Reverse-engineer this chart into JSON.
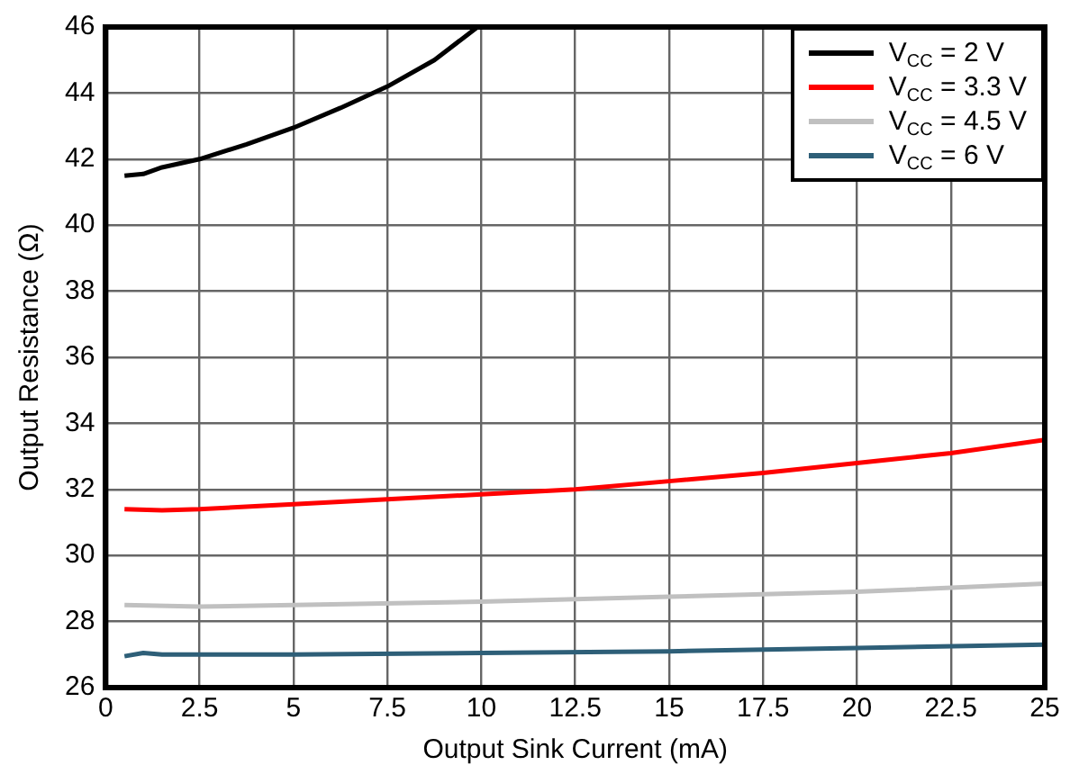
{
  "chart_data": {
    "type": "line",
    "xlabel": "Output Sink Current (mA)",
    "ylabel": "Output Resistance (Ω)",
    "xlim": [
      0,
      25
    ],
    "xticks": [
      0,
      2.5,
      5,
      7.5,
      10,
      12.5,
      15,
      17.5,
      20,
      22.5,
      25
    ],
    "ylim": [
      26,
      46
    ],
    "yticks": [
      26,
      28,
      30,
      32,
      34,
      36,
      38,
      40,
      42,
      44,
      46
    ],
    "grid": true,
    "legend": "top right",
    "marker": "none",
    "line_style": "solid",
    "series": [
      {
        "name": "V$_{CC}$ = 2 V",
        "color": "#000000",
        "x": [
          0.5,
          1,
          1.5,
          2.5,
          3.75,
          5,
          6.25,
          7.5,
          8.75,
          9.9
        ],
        "values": [
          41.5,
          41.55,
          41.75,
          42.0,
          42.45,
          42.95,
          43.55,
          44.2,
          45.0,
          46.0
        ]
      },
      {
        "name": "V$_{CC}$ = 3.3 V",
        "color": "#ff0000",
        "x": [
          0.5,
          1.5,
          2.5,
          5,
          7.5,
          10,
          12.5,
          15,
          17.5,
          20,
          22.5,
          25
        ],
        "values": [
          31.4,
          31.37,
          31.4,
          31.55,
          31.7,
          31.85,
          32.0,
          32.25,
          32.5,
          32.8,
          33.1,
          33.5
        ]
      },
      {
        "name": "V$_{CC}$ = 4.5 V",
        "color": "#c0c0c0",
        "x": [
          0.5,
          2.5,
          5,
          10,
          15,
          20,
          25
        ],
        "values": [
          28.5,
          28.45,
          28.5,
          28.6,
          28.75,
          28.9,
          29.15
        ]
      },
      {
        "name": "V$_{CC}$ = 6 V",
        "color": "#2e5f78",
        "x": [
          0.5,
          1,
          1.5,
          2.5,
          5,
          10,
          15,
          20,
          25
        ],
        "values": [
          26.95,
          27.05,
          27.0,
          27.0,
          27.0,
          27.05,
          27.1,
          27.2,
          27.3
        ]
      }
    ]
  }
}
